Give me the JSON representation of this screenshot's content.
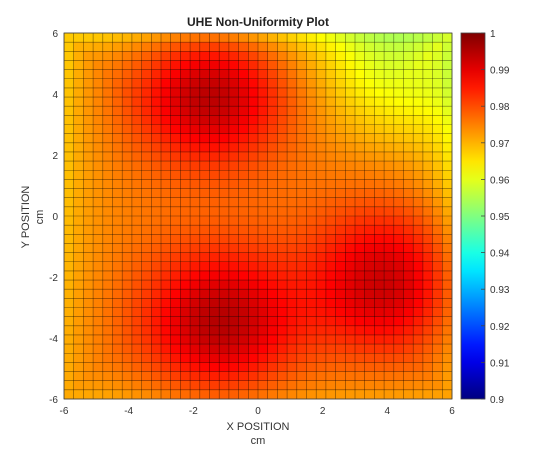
{
  "chart_data": {
    "type": "heatmap",
    "title": "UHE Non-Uniformity Plot",
    "xlabel": "X POSITION",
    "xunit": "cm",
    "ylabel": "Y POSITION",
    "yunit": "cm",
    "xlim": [
      -6,
      6
    ],
    "ylim": [
      -6,
      6
    ],
    "x_ticks": [
      "-6",
      "-4",
      "-2",
      "0",
      "2",
      "4",
      "6"
    ],
    "y_ticks": [
      "-6",
      "-4",
      "-2",
      "0",
      "2",
      "4",
      "6"
    ],
    "grid": true,
    "grid_size": [
      40,
      40
    ],
    "colorbar": {
      "min": 0.9,
      "max": 1,
      "ticks": [
        "0.9",
        "0.91",
        "0.92",
        "0.93",
        "0.94",
        "0.95",
        "0.96",
        "0.97",
        "0.98",
        "0.99",
        "1"
      ],
      "colormap": "jet"
    },
    "baseline": 0.975,
    "corner_values": {
      "top_left": 0.966,
      "top_right": 0.962,
      "bottom_left": 0.97,
      "bottom_right": 0.97
    },
    "peaks": [
      {
        "x": -1.5,
        "y": 4.0,
        "value": 0.995,
        "spread": 1.6
      },
      {
        "x": -1.2,
        "y": -3.5,
        "value": 0.995,
        "spread": 1.7
      },
      {
        "x": 4.0,
        "y": -2.2,
        "value": 0.993,
        "spread": 1.7
      }
    ],
    "low_regions": [
      {
        "x": 4.2,
        "y": 4.7,
        "value": 0.962,
        "spread": 1.6
      }
    ]
  }
}
